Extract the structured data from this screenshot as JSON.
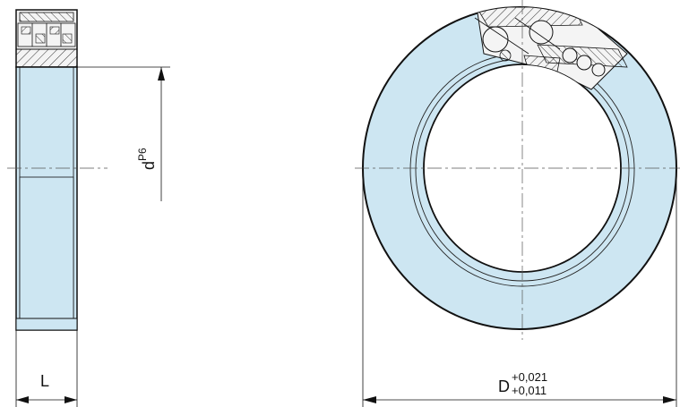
{
  "dimensions": {
    "width_label": "L",
    "bore": {
      "symbol": "d",
      "tolerance": "P6"
    },
    "outer": {
      "symbol": "D",
      "upper_deviation": "+0,021",
      "lower_deviation": "+0,011"
    }
  },
  "colors": {
    "fill": "#cde6f2",
    "outline": "#111111",
    "hatch": "#333333",
    "centerline": "#555555",
    "background": "#ffffff"
  }
}
